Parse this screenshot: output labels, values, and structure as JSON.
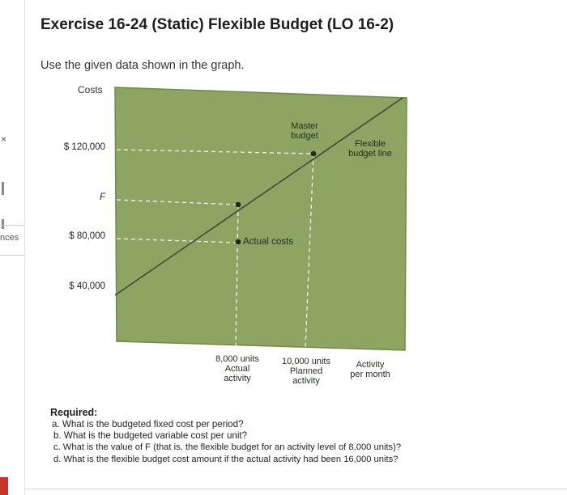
{
  "page": {
    "title": "Exercise 16-24 (Static) Flexible Budget (LO 16-2)",
    "intro": "Use the given data shown in the graph."
  },
  "sidebar": {
    "close_glyph": "×",
    "fragment_text": "nces"
  },
  "graph": {
    "y_axis_title": "Costs",
    "y_labels": [
      "$ 120,000",
      "F",
      "$ 80,000",
      "$ 40,000"
    ],
    "master_budget_label": [
      "Master",
      "budget"
    ],
    "flexible_budget_label": [
      "Flexible",
      "budget line"
    ],
    "actual_costs_label": "Actual costs",
    "x_labels": {
      "actual": [
        "8,000 units",
        "Actual",
        "activity"
      ],
      "planned": [
        "10,000 units",
        "Planned",
        "activity"
      ],
      "axis": [
        "Activity",
        "per month"
      ]
    },
    "colors": {
      "plot_fill": "#8ea463",
      "plot_border": "#6f8a48",
      "line": "#3f4a3a",
      "dash": "#f2f2ec"
    }
  },
  "required": {
    "heading": "Required:",
    "questions": [
      "a. What is the budgeted fixed cost per period?",
      "b. What is the budgeted variable cost per unit?",
      "c. What is the value of F (that is, the flexible budget for an activity level of 8,000 units)?",
      "d. What is the flexible budget cost amount if the actual activity had been 16,000 units?"
    ]
  }
}
